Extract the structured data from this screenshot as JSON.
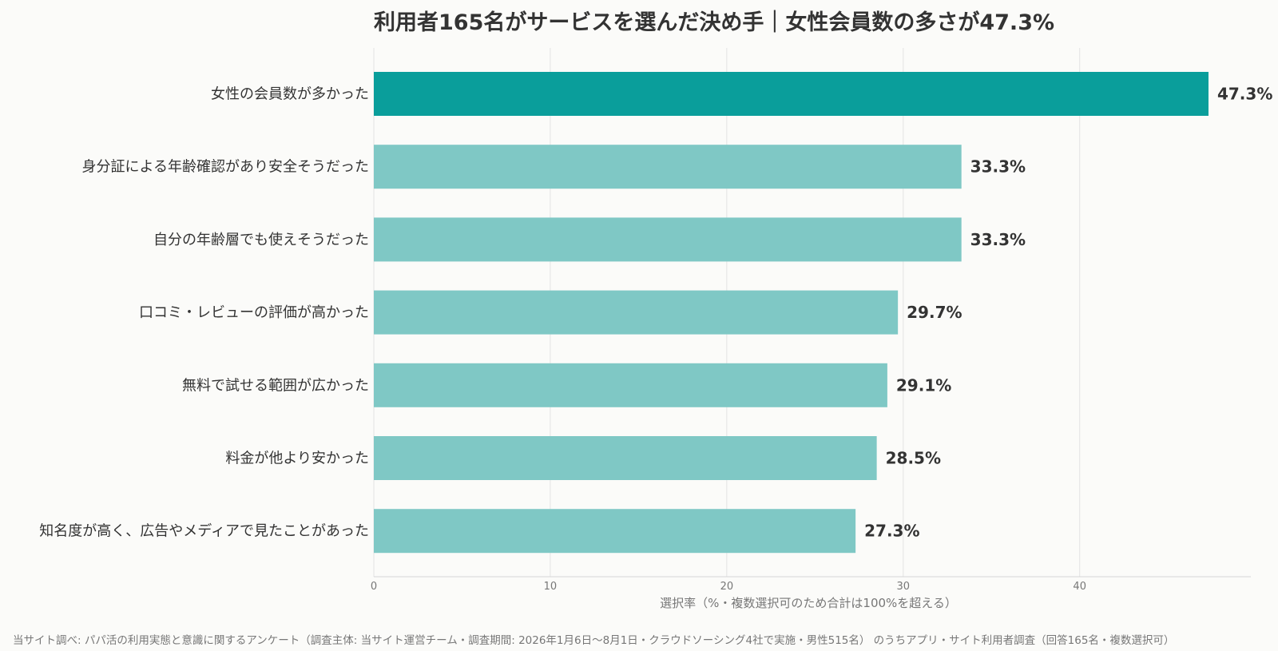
{
  "chart_data": {
    "type": "bar",
    "orientation": "horizontal",
    "title": "利用者165名がサービスを選んだ決め手｜女性会員数の多さが47.3%",
    "categories": [
      "女性の会員数が多かった",
      "身分証による年齢確認があり安全そうだった",
      "自分の年齢層でも使えそうだった",
      "口コミ・レビューの評価が高かった",
      "無料で試せる範囲が広かった",
      "料金が他より安かった",
      "知名度が高く、広告やメディアで見たことがあった"
    ],
    "values": [
      47.3,
      33.3,
      33.3,
      29.7,
      29.1,
      28.5,
      27.3
    ],
    "value_labels": [
      "47.3%",
      "33.3%",
      "33.3%",
      "29.7%",
      "29.1%",
      "28.5%",
      "27.3%"
    ],
    "xlabel": "選択率（%・複数選択可のため合計は100%を超える）",
    "ylabel": "",
    "xlim": [
      0,
      49.7
    ],
    "xticks": [
      0,
      10,
      20,
      30,
      40
    ],
    "grid": true,
    "highlight_color": "#0a9e9b",
    "bar_color": "#7fc8c5"
  },
  "footer": "当サイト調べ: パパ活の利用実態と意識に関するアンケート（調査主体: 当サイト運営チーム・調査期間: 2026年1月6日〜8月1日・クラウドソーシング4社で実施・男性515名） のうちアプリ・サイト利用者調査（回答165名・複数選択可）"
}
